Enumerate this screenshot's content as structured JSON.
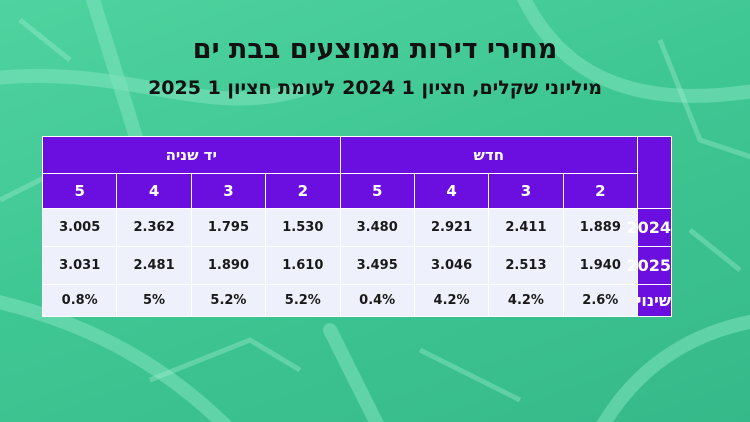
{
  "title": "מחירי דירות ממוצעים בבת ים",
  "subtitle": "מיליוני שקלים, חציון 1 2024 לעומת חציון 1 2025",
  "colors": {
    "header_bg": "#6a0fe0",
    "header_text": "#ffffff",
    "cell_bg": "#eef1fc",
    "background": "#3fc793"
  },
  "table": {
    "groups": [
      "חדש",
      "יד שניה"
    ],
    "rooms": {
      "new": [
        "2",
        "3",
        "4",
        "5"
      ],
      "second_hand": [
        "2",
        "3",
        "4",
        "5"
      ]
    },
    "rows": [
      {
        "label": "2024",
        "new": [
          "1.889",
          "2.411",
          "2.921",
          "3.480"
        ],
        "second_hand": [
          "1.530",
          "1.795",
          "2.362",
          "3.005"
        ]
      },
      {
        "label": "2025",
        "new": [
          "1.940",
          "2.513",
          "3.046",
          "3.495"
        ],
        "second_hand": [
          "1.610",
          "1.890",
          "2.481",
          "3.031"
        ]
      },
      {
        "label": "שינוי",
        "new": [
          "2.6%",
          "4.2%",
          "4.2%",
          "0.4%"
        ],
        "second_hand": [
          "5.2%",
          "5.2%",
          "5%",
          "0.8%"
        ]
      }
    ]
  }
}
